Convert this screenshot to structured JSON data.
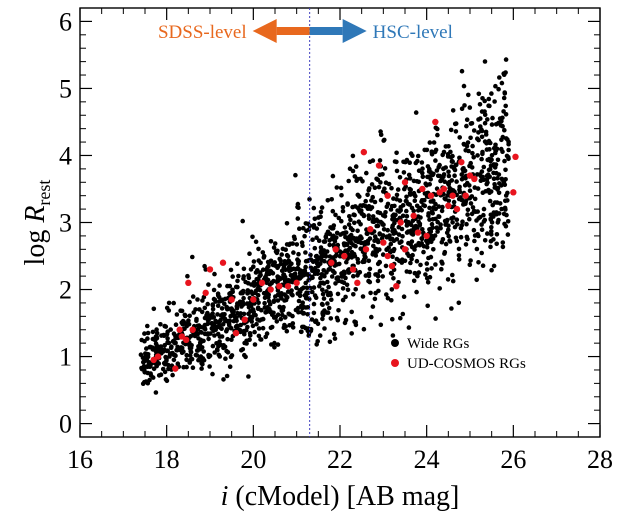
{
  "chart_data": {
    "type": "scatter",
    "title": "",
    "xlabel_italic": "i",
    "xlabel_rest": " (cModel) [AB mag]",
    "ylabel_main": "log ",
    "ylabel_italic": "R",
    "ylabel_sub": "rest",
    "xlim": [
      16,
      28
    ],
    "ylim": [
      -0.2,
      6.2
    ],
    "x_ticks": [
      16,
      18,
      20,
      22,
      24,
      26,
      28
    ],
    "y_ticks": [
      0,
      1,
      2,
      3,
      4,
      5,
      6
    ],
    "x_tick_labels": [
      "16",
      "18",
      "20",
      "22",
      "24",
      "26",
      "28"
    ],
    "y_tick_labels": [
      "0",
      "1",
      "2",
      "3",
      "4",
      "5",
      "6"
    ],
    "legend_position": "lower-right",
    "grid": false,
    "divider_x": 21.3,
    "annotations": {
      "left": "SDSS-level",
      "right": "HSC-level",
      "left_color": "#e8681e",
      "right_color": "#2f78b8"
    },
    "series": [
      {
        "name": "Wide RGs",
        "color": "#000000",
        "trend": {
          "x0": 17.5,
          "y0": 0.9,
          "x1": 25.5,
          "y1": 3.7
        },
        "x_range": [
          17.3,
          26.0
        ],
        "count": 1900
      },
      {
        "name": "UD-COSMOS RGs",
        "color": "#e8141e",
        "points": [
          [
            17.7,
            0.95
          ],
          [
            17.8,
            1.0
          ],
          [
            18.2,
            0.82
          ],
          [
            18.3,
            1.4
          ],
          [
            18.35,
            1.3
          ],
          [
            18.45,
            1.25
          ],
          [
            18.5,
            2.1
          ],
          [
            18.6,
            1.4
          ],
          [
            18.9,
            1.95
          ],
          [
            19.0,
            2.3
          ],
          [
            19.3,
            2.4
          ],
          [
            19.5,
            1.85
          ],
          [
            19.6,
            1.35
          ],
          [
            19.8,
            1.55
          ],
          [
            20.0,
            1.85
          ],
          [
            20.2,
            2.1
          ],
          [
            20.4,
            2.0
          ],
          [
            20.6,
            2.05
          ],
          [
            20.8,
            2.05
          ],
          [
            21.0,
            2.1
          ],
          [
            21.8,
            2.4
          ],
          [
            21.9,
            2.6
          ],
          [
            22.1,
            2.5
          ],
          [
            22.3,
            2.3
          ],
          [
            22.4,
            2.1
          ],
          [
            22.55,
            4.05
          ],
          [
            22.6,
            2.6
          ],
          [
            22.7,
            2.9
          ],
          [
            22.9,
            3.85
          ],
          [
            23.0,
            2.7
          ],
          [
            23.1,
            3.4
          ],
          [
            23.1,
            2.5
          ],
          [
            23.2,
            2.35
          ],
          [
            23.3,
            2.05
          ],
          [
            23.4,
            3.0
          ],
          [
            23.5,
            3.6
          ],
          [
            23.5,
            2.6
          ],
          [
            23.7,
            3.1
          ],
          [
            23.8,
            2.85
          ],
          [
            23.9,
            3.5
          ],
          [
            24.0,
            2.8
          ],
          [
            24.1,
            3.4
          ],
          [
            24.2,
            4.5
          ],
          [
            24.3,
            3.45
          ],
          [
            24.4,
            3.5
          ],
          [
            24.5,
            3.25
          ],
          [
            24.6,
            3.4
          ],
          [
            24.7,
            3.2
          ],
          [
            24.8,
            3.9
          ],
          [
            24.9,
            3.4
          ],
          [
            25.0,
            3.7
          ],
          [
            25.1,
            3.65
          ],
          [
            26.0,
            3.45
          ],
          [
            26.05,
            3.98
          ]
        ]
      }
    ]
  }
}
